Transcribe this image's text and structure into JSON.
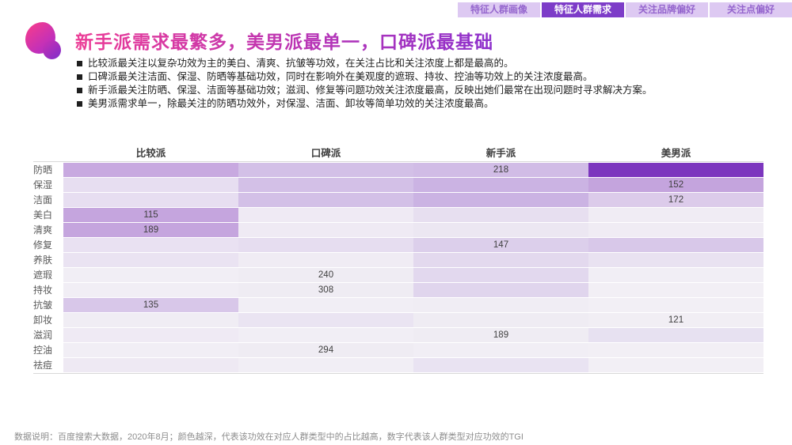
{
  "tabs": {
    "items": [
      {
        "label": "特征人群画像",
        "active": false
      },
      {
        "label": "特征人群需求",
        "active": true
      },
      {
        "label": "关注品牌偏好",
        "active": false
      },
      {
        "label": "关注点偏好",
        "active": false
      }
    ]
  },
  "header": {
    "title": "新手派需求最繁多，美男派最单一，口碑派最基础"
  },
  "bullets": [
    "比较派最关注以复杂功效为主的美白、清爽、抗皱等功效，在关注占比和关注浓度上都是最高的。",
    "口碑派最关注洁面、保湿、防晒等基础功效，同时在影响外在美观度的遮瑕、持妆、控油等功效上的关注浓度最高。",
    "新手派最关注防晒、保湿、洁面等基础功效；滋润、修复等问题功效关注浓度最高，反映出她们最常在出现问题时寻求解决方案。",
    "美男派需求单一，除最关注的防晒功效外，对保湿、洁面、卸妆等简单功效的关注浓度最高。"
  ],
  "footer": {
    "note": "数据说明：百度搜索大数据，2020年8月；颜色越深，代表该功效在对应人群类型中的占比越高，数字代表该人群类型对应功效的TGI"
  },
  "colors": {
    "accent_purple": "#7d3cc8",
    "tab_inactive_bg": "#ddc9f2",
    "tab_inactive_text": "#9465cd",
    "title_gradient_start": "#ec3c96",
    "title_gradient_end": "#8d30cc",
    "heat_darkest": "#7c36be"
  },
  "chart_data": {
    "type": "heatmap",
    "title": "新手派需求最繁多，美男派最单一，口碑派最基础",
    "columns": [
      "比较派",
      "口碑派",
      "新手派",
      "美男派"
    ],
    "rows": [
      "防晒",
      "保湿",
      "洁面",
      "美白",
      "清爽",
      "修复",
      "养肤",
      "遮瑕",
      "持妆",
      "抗皱",
      "卸妆",
      "滋润",
      "控油",
      "祛痘"
    ],
    "tgi_values": [
      [
        null,
        null,
        218,
        null
      ],
      [
        null,
        null,
        null,
        152
      ],
      [
        null,
        null,
        null,
        172
      ],
      [
        115,
        null,
        null,
        null
      ],
      [
        189,
        null,
        null,
        null
      ],
      [
        null,
        null,
        147,
        null
      ],
      [
        null,
        null,
        null,
        null
      ],
      [
        null,
        240,
        null,
        null
      ],
      [
        null,
        308,
        null,
        null
      ],
      [
        135,
        null,
        null,
        null
      ],
      [
        null,
        null,
        null,
        121
      ],
      [
        null,
        null,
        189,
        null
      ],
      [
        null,
        294,
        null,
        null
      ],
      [
        null,
        null,
        null,
        null
      ]
    ],
    "cell_colors": [
      [
        "#c8a9e0",
        "#d3c0e7",
        "#d1bce6",
        "#7c36be"
      ],
      [
        "#e7def1",
        "#d3c0e7",
        "#cbb3e3",
        "#c4a4dd"
      ],
      [
        "#e7def1",
        "#d3c0e7",
        "#cbb3e3",
        "#dccbea"
      ],
      [
        "#c5a5de",
        "#efeaf4",
        "#e7dff0",
        "#f0ecf4"
      ],
      [
        "#c5a5de",
        "#efeaf4",
        "#ece7f2",
        "#f0ecf4"
      ],
      [
        "#e9e1f2",
        "#e6ddf0",
        "#dccfeb",
        "#d8c8e9"
      ],
      [
        "#eae3f2",
        "#f0ecf4",
        "#e3d9ee",
        "#e9e2f1"
      ],
      [
        "#f1eef5",
        "#efecf3",
        "#e2d8ee",
        "#f1eef5"
      ],
      [
        "#f1eef5",
        "#efecf3",
        "#e0d5ed",
        "#f2eff5"
      ],
      [
        "#d8c7e9",
        "#f1eef5",
        "#f0edf4",
        "#f2eff5"
      ],
      [
        "#f0edf4",
        "#eae4f2",
        "#efecf3",
        "#f1eef4"
      ],
      [
        "#efeaf4",
        "#f1eef5",
        "#efecf3",
        "#e7e1f1"
      ],
      [
        "#f1eef5",
        "#efecf3",
        "#f1eef5",
        "#f2eff5"
      ],
      [
        "#eee9f3",
        "#f1eef5",
        "#e9e3f2",
        "#f2eff5"
      ]
    ],
    "legend_note": "颜色越深，代表该功效在对应人群类型中的占比越高，数字代表该人群类型对应功效的TGI"
  }
}
